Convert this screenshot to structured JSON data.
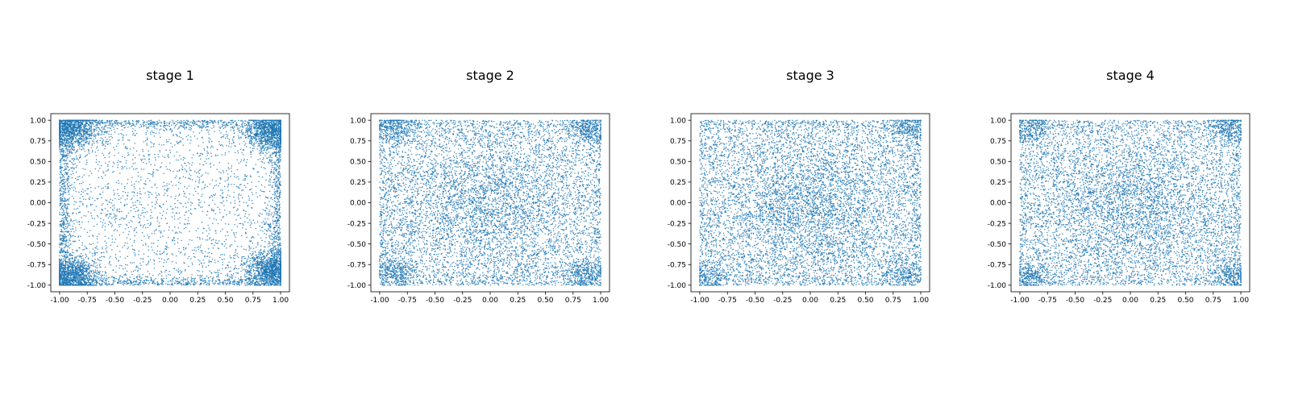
{
  "chart_data": [
    {
      "type": "scatter",
      "title": "stage 1",
      "xlim": [
        -1.08,
        1.08
      ],
      "ylim": [
        -1.08,
        1.08
      ],
      "xticks": [
        "-1.00",
        "-0.75",
        "-0.50",
        "-0.25",
        "0.00",
        "0.25",
        "0.50",
        "0.75",
        "1.00"
      ],
      "yticks": [
        "-1.00",
        "-0.75",
        "-0.50",
        "-0.25",
        "0.00",
        "0.25",
        "0.50",
        "0.75",
        "1.00"
      ],
      "xlabel": "",
      "ylabel": "",
      "grid": false,
      "point_color": "#1f77b4",
      "distribution": {
        "support": [
          -1,
          1
        ],
        "corner_clusters": [
          [
            -0.88,
            0.88
          ],
          [
            0.9,
            0.85
          ],
          [
            -0.88,
            -0.88
          ],
          [
            0.9,
            -0.8
          ]
        ],
        "cluster_share": 0.48,
        "edge_share": 0.27,
        "center_share": 0.0,
        "cluster_spread": 0.11,
        "count": 9000
      }
    },
    {
      "type": "scatter",
      "title": "stage 2",
      "xlim": [
        -1.08,
        1.08
      ],
      "ylim": [
        -1.08,
        1.08
      ],
      "xticks": [
        "-1.00",
        "-0.75",
        "-0.50",
        "-0.25",
        "0.00",
        "0.25",
        "0.50",
        "0.75",
        "1.00"
      ],
      "yticks": [
        "-1.00",
        "-0.75",
        "-0.50",
        "-0.25",
        "0.00",
        "0.25",
        "0.50",
        "0.75",
        "1.00"
      ],
      "xlabel": "",
      "ylabel": "",
      "grid": false,
      "point_color": "#1f77b4",
      "distribution": {
        "support": [
          -1,
          1
        ],
        "corner_clusters": [
          [
            -0.88,
            0.9
          ],
          [
            0.9,
            0.88
          ],
          [
            -0.85,
            -0.85
          ],
          [
            0.85,
            -0.85
          ]
        ],
        "cluster_share": 0.14,
        "edge_share": 0.06,
        "center_share": 0.12,
        "cluster_spread": 0.09,
        "count": 9000
      }
    },
    {
      "type": "scatter",
      "title": "stage 3",
      "xlim": [
        -1.08,
        1.08
      ],
      "ylim": [
        -1.08,
        1.08
      ],
      "xticks": [
        "-1.00",
        "-0.75",
        "-0.50",
        "-0.25",
        "0.00",
        "0.25",
        "0.50",
        "0.75",
        "1.00"
      ],
      "yticks": [
        "-1.00",
        "-0.75",
        "-0.50",
        "-0.25",
        "0.00",
        "0.25",
        "0.50",
        "0.75",
        "1.00"
      ],
      "xlabel": "",
      "ylabel": "",
      "grid": false,
      "point_color": "#1f77b4",
      "distribution": {
        "support": [
          -1,
          1
        ],
        "corner_clusters": [
          [
            0.88,
            0.9
          ],
          [
            -0.9,
            -0.9
          ],
          [
            0.85,
            -0.85
          ]
        ],
        "cluster_share": 0.07,
        "edge_share": 0.06,
        "center_share": 0.16,
        "cluster_spread": 0.09,
        "count": 9000
      }
    },
    {
      "type": "scatter",
      "title": "stage 4",
      "xlim": [
        -1.08,
        1.08
      ],
      "ylim": [
        -1.08,
        1.08
      ],
      "xticks": [
        "-1.00",
        "-0.75",
        "-0.50",
        "-0.25",
        "0.00",
        "0.25",
        "0.50",
        "0.75",
        "1.00"
      ],
      "yticks": [
        "-1.00",
        "-0.75",
        "-0.50",
        "-0.25",
        "0.00",
        "0.25",
        "0.50",
        "0.75",
        "1.00"
      ],
      "xlabel": "",
      "ylabel": "",
      "grid": false,
      "point_color": "#1f77b4",
      "distribution": {
        "support": [
          -1,
          1
        ],
        "corner_clusters": [
          [
            -0.88,
            0.9
          ],
          [
            0.88,
            0.9
          ],
          [
            -0.9,
            -0.88
          ],
          [
            0.9,
            -0.88
          ]
        ],
        "cluster_share": 0.12,
        "edge_share": 0.05,
        "center_share": 0.14,
        "cluster_spread": 0.09,
        "count": 9000
      }
    }
  ]
}
